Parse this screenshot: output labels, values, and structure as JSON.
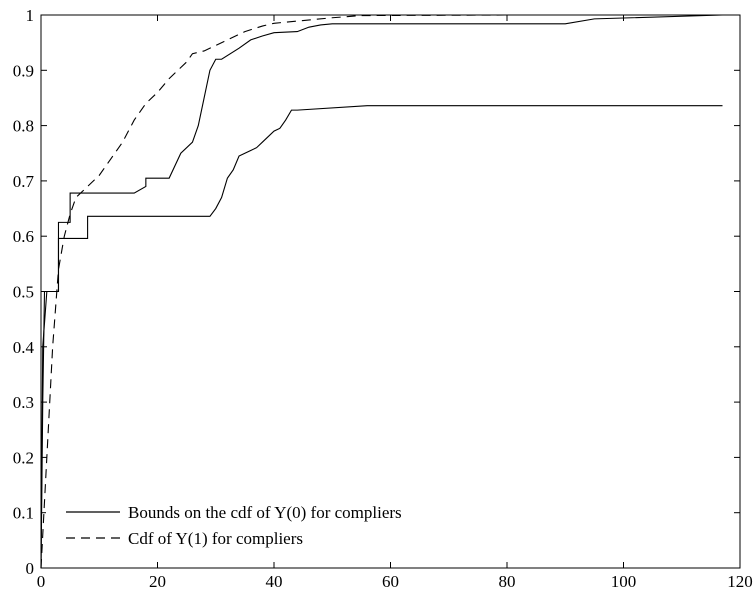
{
  "chart_data": {
    "type": "line",
    "title": "",
    "xlabel": "",
    "ylabel": "",
    "xlim": [
      0,
      120
    ],
    "ylim": [
      0,
      1
    ],
    "x_ticks": [
      0,
      20,
      40,
      60,
      80,
      100,
      120
    ],
    "y_ticks": [
      0,
      0.1,
      0.2,
      0.3,
      0.4,
      0.5,
      0.6,
      0.7,
      0.8,
      0.9,
      1
    ],
    "x_tick_labels": [
      "0",
      "20",
      "40",
      "60",
      "80",
      "100",
      "120"
    ],
    "y_tick_labels": [
      "0",
      "0.1",
      "0.2",
      "0.3",
      "0.4",
      "0.5",
      "0.6",
      "0.7",
      "0.8",
      "0.9",
      "1"
    ],
    "grid": false,
    "legend_position": "bottom-left",
    "series": [
      {
        "name": "Bounds on the cdf of Y(0) for compliers",
        "style": "solid",
        "color": "#000000",
        "x": [
          0,
          0.3,
          0.6,
          1,
          3,
          3,
          5,
          5,
          16,
          18,
          18,
          22,
          24,
          26,
          27,
          28,
          29,
          30,
          31,
          34,
          36,
          38,
          40,
          44,
          46,
          48,
          50,
          90,
          95,
          117
        ],
        "y": [
          0,
          0.3,
          0.5,
          0.5,
          0.5,
          0.625,
          0.625,
          0.678,
          0.678,
          0.69,
          0.705,
          0.705,
          0.75,
          0.77,
          0.8,
          0.85,
          0.9,
          0.92,
          0.92,
          0.94,
          0.955,
          0.962,
          0.968,
          0.97,
          0.978,
          0.982,
          0.984,
          0.984,
          0.993,
          1.0
        ]
      },
      {
        "name": "",
        "style": "solid",
        "color": "#000000",
        "x": [
          0,
          0.3,
          1,
          3,
          3,
          8,
          8,
          29,
          30,
          31,
          32,
          33,
          34,
          35,
          36,
          37,
          38,
          40,
          41,
          42,
          43,
          44,
          56,
          117
        ],
        "y": [
          0,
          0.4,
          0.5,
          0.5,
          0.596,
          0.596,
          0.636,
          0.636,
          0.65,
          0.67,
          0.705,
          0.72,
          0.745,
          0.75,
          0.755,
          0.76,
          0.77,
          0.79,
          0.795,
          0.81,
          0.828,
          0.828,
          0.836,
          0.836
        ]
      },
      {
        "name": "Cdf of Y(1) for compliers",
        "style": "dashed",
        "color": "#000000",
        "x": [
          0,
          1,
          2,
          3,
          4,
          5,
          6,
          8,
          10,
          12,
          14,
          16,
          18,
          20,
          22,
          24,
          25,
          26,
          28,
          30,
          32,
          35,
          38,
          40,
          45,
          50,
          55,
          80
        ],
        "y": [
          0,
          0.2,
          0.4,
          0.54,
          0.6,
          0.64,
          0.67,
          0.69,
          0.71,
          0.74,
          0.77,
          0.81,
          0.84,
          0.86,
          0.885,
          0.905,
          0.915,
          0.93,
          0.935,
          0.945,
          0.955,
          0.97,
          0.98,
          0.985,
          0.99,
          0.995,
          0.999,
          1.0
        ]
      }
    ]
  }
}
